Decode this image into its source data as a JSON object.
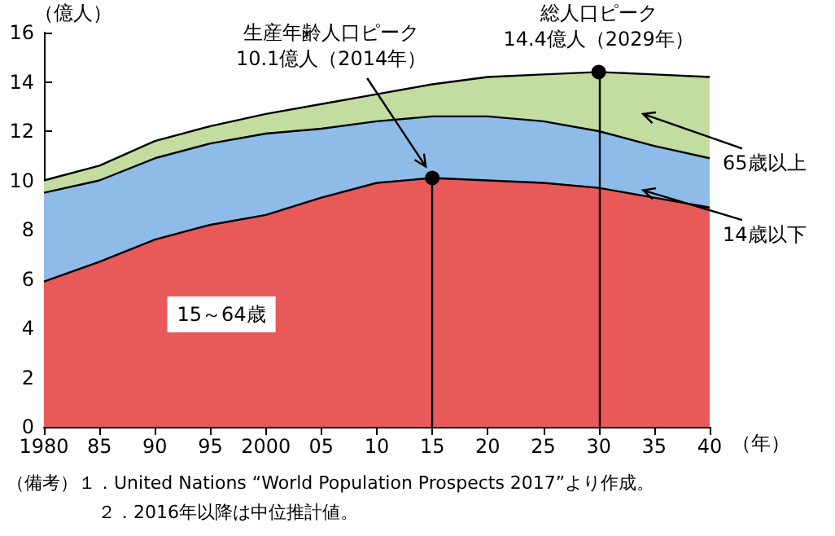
{
  "chart_data": {
    "type": "area",
    "stacked": true,
    "ylabel": "（億人）",
    "xlabel": "（年）",
    "x": [
      1980,
      1985,
      1990,
      1995,
      2000,
      2005,
      2010,
      2015,
      2020,
      2025,
      2030,
      2035,
      2040
    ],
    "series": [
      {
        "name": "15～64歳",
        "color": "#e8595a",
        "values": [
          5.9,
          6.7,
          7.6,
          8.2,
          8.6,
          9.3,
          9.9,
          10.1,
          10.0,
          9.9,
          9.7,
          9.3,
          8.9
        ]
      },
      {
        "name": "14歳以下",
        "color": "#8fbbe8",
        "values": [
          3.6,
          3.3,
          3.3,
          3.3,
          3.3,
          2.8,
          2.5,
          2.5,
          2.6,
          2.5,
          2.3,
          2.1,
          2.0
        ]
      },
      {
        "name": "65歳以上",
        "color": "#c3dca0",
        "values": [
          0.5,
          0.6,
          0.7,
          0.7,
          0.8,
          1.0,
          1.1,
          1.3,
          1.6,
          1.9,
          2.4,
          2.9,
          3.3
        ]
      }
    ],
    "xlim": [
      1980,
      2040
    ],
    "xticks": [
      1980,
      {
        "value": 1985,
        "label": "85"
      },
      {
        "value": 1990,
        "label": "90"
      },
      {
        "value": 1995,
        "label": "95"
      },
      2000,
      {
        "value": 2005,
        "label": "05"
      },
      {
        "value": 2010,
        "label": "10"
      },
      {
        "value": 2015,
        "label": "15"
      },
      {
        "value": 2020,
        "label": "20"
      },
      {
        "value": 2025,
        "label": "25"
      },
      {
        "value": 2030,
        "label": "30"
      },
      {
        "value": 2035,
        "label": "35"
      },
      {
        "value": 2040,
        "label": "40"
      }
    ],
    "ylim": [
      0,
      16
    ],
    "yticks": [
      0,
      2,
      4,
      6,
      8,
      10,
      12,
      14,
      16
    ],
    "grid": false,
    "legend": false,
    "ref_lines": [
      {
        "axis": "x",
        "value": 2015,
        "color": "#000000"
      },
      {
        "axis": "x",
        "value": 2030,
        "color": "#000000"
      }
    ],
    "annotations": [
      {
        "text": "生産年齢人口ピーク\n10.1億人（2014年）",
        "x": 2015,
        "y": 10.1
      },
      {
        "text": "総人口ピーク\n14.4億人（2029年）",
        "x": 2030,
        "y": 14.4
      },
      "（備考）１．United Nations “World Population Prospects 2017”より作成。",
      "２．2016年以降は中位推計値。"
    ]
  }
}
